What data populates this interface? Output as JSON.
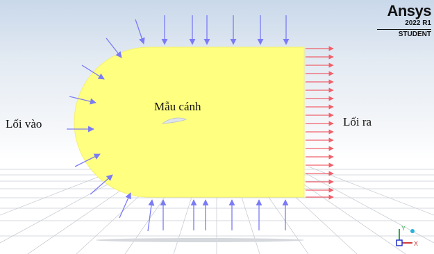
{
  "labels": {
    "inlet": "Lối vào",
    "outlet": "Lối ra",
    "airfoil": "Mẫu cánh"
  },
  "logo": {
    "brand": "Ansys",
    "version": "2022 R1",
    "edition": "STUDENT"
  },
  "triad": {
    "y_axis": "Y",
    "x_axis": "X"
  },
  "colors": {
    "domain_fill": "#ffff80",
    "inlet_arrows": "#7b7bf5",
    "outlet_arrows": "#f0606a",
    "airfoil": "#dfe4ea",
    "background_top": "#c9d8ea",
    "grid_floor": "#c8cdd4"
  },
  "icons": {
    "inlet_arrow": "arrow-in-icon",
    "outlet_arrow": "arrow-out-icon",
    "triad": "axis-triad-icon"
  }
}
